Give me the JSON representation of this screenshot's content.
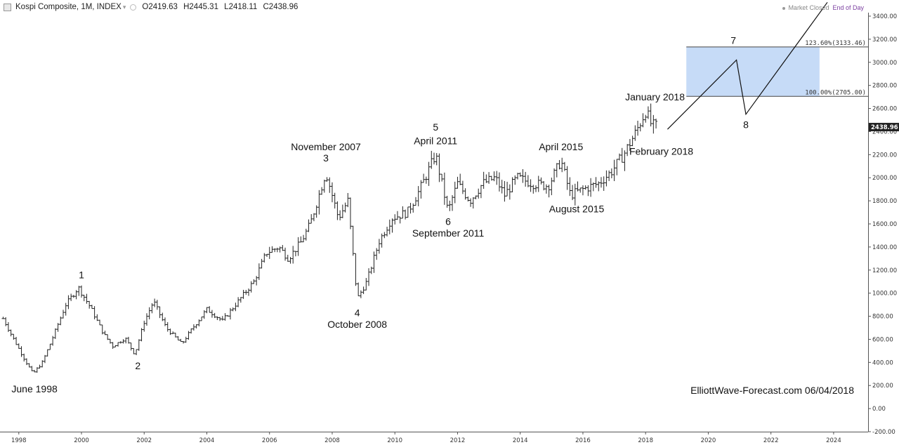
{
  "header": {
    "symbol_title": "Kospi Composite, 1M, INDEX",
    "ohlc": {
      "open": "O2419.63",
      "high": "H2445.31",
      "low": "L2418.11",
      "close": "C2438.96"
    },
    "icons": [
      "logo-square-icon",
      "caret-down-icon",
      "visibility-dot-icon"
    ]
  },
  "status": {
    "market": "Market Closed",
    "mode": "End of Day"
  },
  "colors": {
    "bars": "#222222",
    "target_box": "#c6dbf7",
    "target_box_edge": "#444444",
    "price_label_bg": "#222222",
    "eod": "#7b3fa0"
  },
  "chart_data": {
    "type": "line",
    "subtype": "ohlc-monthly",
    "title": "Kospi Composite, 1M, INDEX",
    "xlabel": "",
    "ylabel": "",
    "xlim": [
      1997.4,
      2025.1
    ],
    "ylim": [
      -200,
      3500
    ],
    "grid": false,
    "x_ticks": [
      "1998",
      "2000",
      "2002",
      "2004",
      "2006",
      "2008",
      "2010",
      "2012",
      "2014",
      "2016",
      "2018",
      "2020",
      "2022",
      "2024"
    ],
    "y_ticks": [
      "-200.00",
      "0.00",
      "200.00",
      "400.00",
      "600.00",
      "800.00",
      "1000.00",
      "1200.00",
      "1400.00",
      "1600.00",
      "1800.00",
      "2000.00",
      "2200.00",
      "2400.00",
      "2600.00",
      "2800.00",
      "3000.00",
      "3200.00",
      "3400.00"
    ],
    "last_price": "2438.96",
    "price_path": [
      [
        1997.5,
        780
      ],
      [
        1997.8,
        620
      ],
      [
        1998.2,
        420
      ],
      [
        1998.45,
        300
      ],
      [
        1998.75,
        400
      ],
      [
        1999.0,
        560
      ],
      [
        1999.5,
        900
      ],
      [
        1999.9,
        1050
      ],
      [
        2000.3,
        870
      ],
      [
        2000.7,
        650
      ],
      [
        2001.0,
        540
      ],
      [
        2001.4,
        610
      ],
      [
        2001.7,
        470
      ],
      [
        2002.0,
        750
      ],
      [
        2002.3,
        930
      ],
      [
        2002.7,
        700
      ],
      [
        2003.2,
        560
      ],
      [
        2003.5,
        680
      ],
      [
        2004.0,
        860
      ],
      [
        2004.5,
        760
      ],
      [
        2005.0,
        930
      ],
      [
        2005.5,
        1100
      ],
      [
        2005.9,
        1350
      ],
      [
        2006.3,
        1400
      ],
      [
        2006.6,
        1300
      ],
      [
        2007.0,
        1440
      ],
      [
        2007.3,
        1600
      ],
      [
        2007.8,
        2050
      ],
      [
        2008.2,
        1650
      ],
      [
        2008.5,
        1800
      ],
      [
        2008.8,
        950
      ],
      [
        2009.1,
        1100
      ],
      [
        2009.5,
        1450
      ],
      [
        2009.9,
        1650
      ],
      [
        2010.4,
        1700
      ],
      [
        2010.8,
        1900
      ],
      [
        2011.3,
        2200
      ],
      [
        2011.7,
        1700
      ],
      [
        2011.8,
        1800
      ],
      [
        2012.0,
        1950
      ],
      [
        2012.4,
        1800
      ],
      [
        2012.8,
        1950
      ],
      [
        2013.2,
        2000
      ],
      [
        2013.5,
        1850
      ],
      [
        2013.9,
        2000
      ],
      [
        2014.4,
        1950
      ],
      [
        2014.9,
        1930
      ],
      [
        2015.3,
        2150
      ],
      [
        2015.6,
        1850
      ],
      [
        2016.0,
        1900
      ],
      [
        2016.5,
        1950
      ],
      [
        2016.9,
        2050
      ],
      [
        2017.3,
        2200
      ],
      [
        2017.7,
        2400
      ],
      [
        2018.0,
        2580
      ],
      [
        2018.2,
        2450
      ],
      [
        2018.4,
        2440
      ]
    ],
    "projection": {
      "points": [
        [
          2018.7,
          2420
        ],
        [
          2020.9,
          3020
        ],
        [
          2021.2,
          2550
        ],
        [
          2023.8,
          3520
        ]
      ],
      "labels": [
        "7",
        "8"
      ]
    },
    "target_box": {
      "x_range": [
        2019.3,
        2023.55
      ],
      "y_range": [
        2705.0,
        3133.46
      ],
      "levels": [
        {
          "label": "123.60%(3133.46)",
          "value": 3133.46
        },
        {
          "label": "100.00%(2705.00)",
          "value": 2705.0
        }
      ]
    },
    "annotations": [
      {
        "text": "June 1998",
        "x": 1998.5,
        "y": 140
      },
      {
        "text": "1",
        "x": 2000.0,
        "y": 1130
      },
      {
        "text": "2",
        "x": 2001.8,
        "y": 340
      },
      {
        "text": "November 2007",
        "x": 2007.8,
        "y": 2240
      },
      {
        "text": "3",
        "x": 2007.8,
        "y": 2140
      },
      {
        "text": "4",
        "x": 2008.8,
        "y": 800
      },
      {
        "text": "October 2008",
        "x": 2008.8,
        "y": 700
      },
      {
        "text": "5",
        "x": 2011.3,
        "y": 2410
      },
      {
        "text": "April 2011",
        "x": 2011.3,
        "y": 2290
      },
      {
        "text": "6",
        "x": 2011.7,
        "y": 1590
      },
      {
        "text": "September 2011",
        "x": 2011.7,
        "y": 1490
      },
      {
        "text": "April 2015",
        "x": 2015.3,
        "y": 2240
      },
      {
        "text": "August 2015",
        "x": 2015.8,
        "y": 1700
      },
      {
        "text": "January 2018",
        "x": 2018.3,
        "y": 2670
      },
      {
        "text": "February 2018",
        "x": 2018.5,
        "y": 2200
      },
      {
        "text": "7",
        "x": 2020.8,
        "y": 3160
      },
      {
        "text": "8",
        "x": 2021.2,
        "y": 2430
      }
    ],
    "watermark": "ElliottWave-Forecast.com 06/04/2018"
  }
}
